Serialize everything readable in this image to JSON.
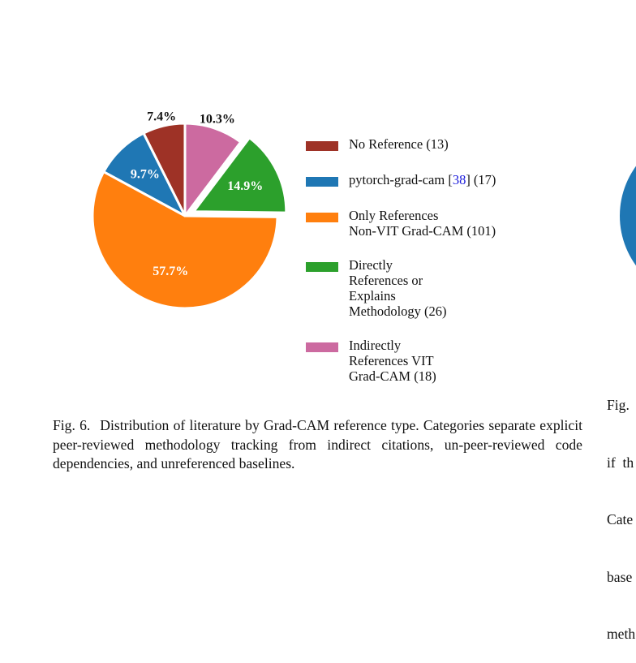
{
  "chart_data": {
    "type": "pie",
    "title": "",
    "slices": [
      {
        "label": "No Reference",
        "count": 13,
        "percent": 7.4,
        "percent_label": "7.4%",
        "color": "#9e3226",
        "exploded": false,
        "label_color": "#111111",
        "label_outside": true
      },
      {
        "label": "pytorch-grad-cam",
        "count": 17,
        "percent": 9.7,
        "percent_label": "9.7%",
        "color": "#1f77b4",
        "exploded": false,
        "label_color": "#ffffff",
        "label_outside": false
      },
      {
        "label": "Only References Non-VIT Grad-CAM",
        "count": 101,
        "percent": 57.7,
        "percent_label": "57.7%",
        "color": "#ff7f0e",
        "exploded": false,
        "label_color": "#ffffff",
        "label_outside": false
      },
      {
        "label": "Directly References or Explains Methodology",
        "count": 26,
        "percent": 14.9,
        "percent_label": "14.9%",
        "color": "#2ca02c",
        "exploded": true,
        "label_color": "#ffffff",
        "label_outside": false
      },
      {
        "label": "Indirectly References VIT Grad-CAM",
        "count": 18,
        "percent": 10.3,
        "percent_label": "10.3%",
        "color": "#cc6aa0",
        "exploded": false,
        "label_color": "#111111",
        "label_outside": true
      }
    ],
    "start_angle_deg": 90,
    "direction": "counterclockwise",
    "legend_placement": "right"
  },
  "legend": {
    "items": [
      {
        "color": "#9e3226",
        "lines": [
          "No Reference (13)"
        ]
      },
      {
        "color": "#1f77b4",
        "pre": "pytorch-grad-cam [",
        "ref": "38",
        "post": "] (17)"
      },
      {
        "color": "#ff7f0e",
        "lines": [
          "Only References",
          "Non-VIT Grad-CAM (101)"
        ]
      },
      {
        "color": "#2ca02c",
        "lines": [
          "Directly",
          "References or",
          "Explains",
          "Methodology (26)"
        ]
      },
      {
        "color": "#cc6aa0",
        "lines": [
          "Indirectly",
          "References VIT",
          "Grad-CAM (18)"
        ]
      }
    ]
  },
  "caption": {
    "label": "Fig. 6.",
    "text": "Distribution of literature by Grad-CAM reference type. Categories separate explicit peer-reviewed methodology tracking from indirect citations, un-peer-reviewed code dependencies, and unreferenced baselines."
  },
  "adjacent_column_fragment": {
    "lines": [
      "Fig.",
      "if  th",
      "Cate",
      "base",
      "meth"
    ],
    "partial_pie_color": "#1f77b4"
  }
}
